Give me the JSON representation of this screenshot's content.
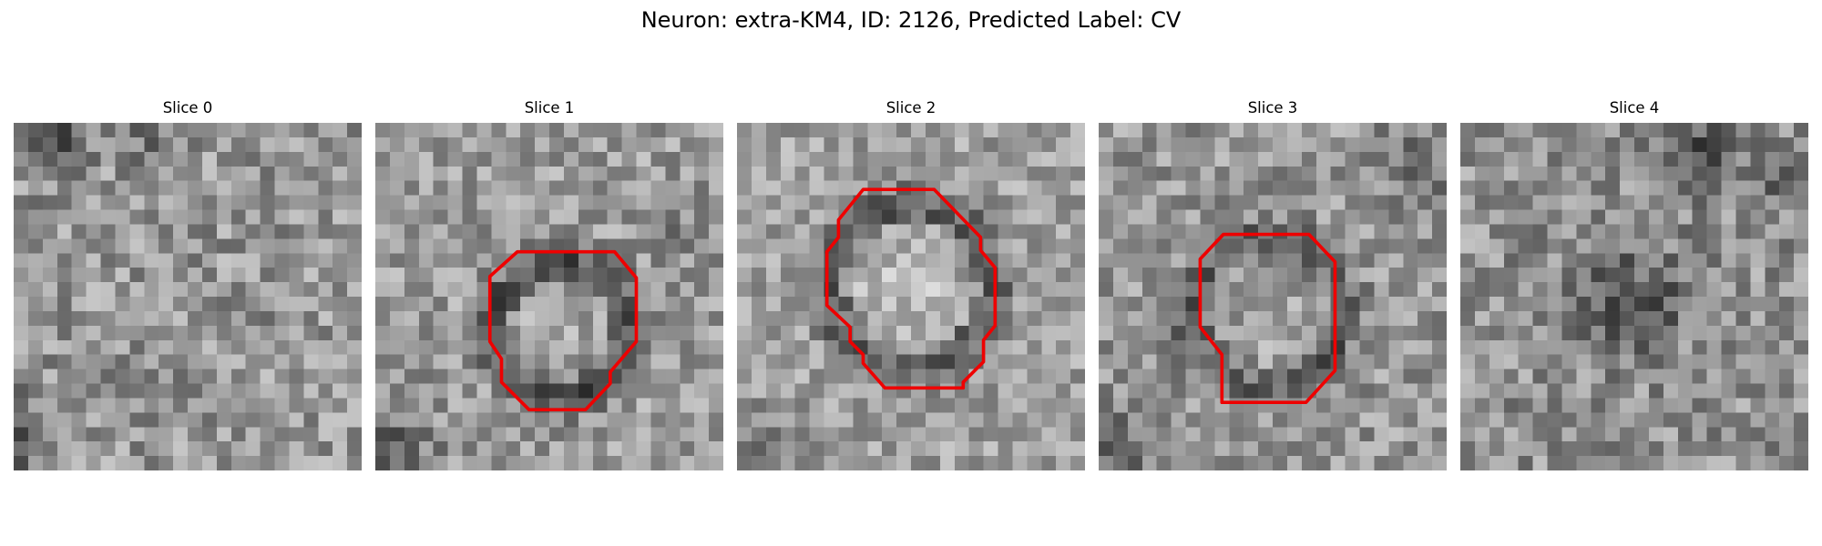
{
  "figure": {
    "title": "Neuron: extra-KM4, ID: 2126, Predicted Label: CV"
  },
  "slices": [
    {
      "label": "Slice 0",
      "has_contour": false
    },
    {
      "label": "Slice 1",
      "has_contour": true
    },
    {
      "label": "Slice 2",
      "has_contour": true
    },
    {
      "label": "Slice 3",
      "has_contour": true
    },
    {
      "label": "Slice 4",
      "has_contour": false
    }
  ],
  "style": {
    "colormap": "gray",
    "contour_color": "#ee0000",
    "background": "#ffffff"
  }
}
